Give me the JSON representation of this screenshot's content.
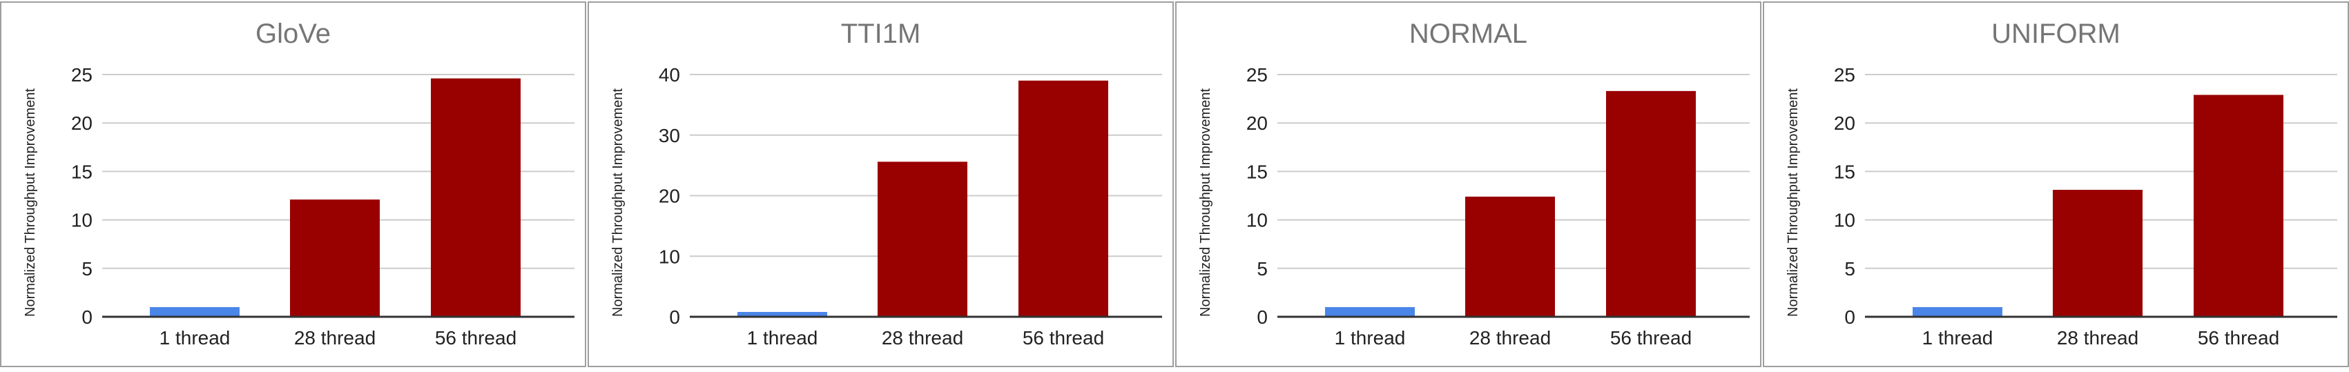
{
  "chart_data": [
    {
      "type": "bar",
      "title": "GloVe",
      "ylabel": "Normalized Throughput Improvement",
      "xlabel": "",
      "categories": [
        "1 thread",
        "28 thread",
        "56 thread"
      ],
      "values": [
        1.0,
        12.1,
        24.6
      ],
      "bar_colors": [
        "#4a86e8",
        "#990000",
        "#990000"
      ],
      "ylim": [
        0,
        25
      ],
      "yticks": [
        0,
        5,
        10,
        15,
        20,
        25
      ],
      "grid": true
    },
    {
      "type": "bar",
      "title": "TTI1M",
      "ylabel": "Normalized Throughput Improvement",
      "xlabel": "",
      "categories": [
        "1 thread",
        "28 thread",
        "56 thread"
      ],
      "values": [
        0.8,
        25.6,
        39.0
      ],
      "bar_colors": [
        "#4a86e8",
        "#990000",
        "#990000"
      ],
      "ylim": [
        0,
        40
      ],
      "yticks": [
        0,
        10,
        20,
        30,
        40
      ],
      "grid": true
    },
    {
      "type": "bar",
      "title": "NORMAL",
      "ylabel": "Normalized Throughput Improvement",
      "xlabel": "",
      "categories": [
        "1 thread",
        "28 thread",
        "56 thread"
      ],
      "values": [
        1.0,
        12.4,
        23.3
      ],
      "bar_colors": [
        "#4a86e8",
        "#990000",
        "#990000"
      ],
      "ylim": [
        0,
        25
      ],
      "yticks": [
        0,
        5,
        10,
        15,
        20,
        25
      ],
      "grid": true
    },
    {
      "type": "bar",
      "title": "UNIFORM",
      "ylabel": "Normalized Throughput Improvement",
      "xlabel": "",
      "categories": [
        "1 thread",
        "28 thread",
        "56 thread"
      ],
      "values": [
        1.0,
        13.1,
        22.9
      ],
      "bar_colors": [
        "#4a86e8",
        "#990000",
        "#990000"
      ],
      "ylim": [
        0,
        25
      ],
      "yticks": [
        0,
        5,
        10,
        15,
        20,
        25
      ],
      "grid": true
    }
  ],
  "colors": {
    "single_thread_bar": "#4a86e8",
    "multi_thread_bar": "#990000",
    "gridline": "#cccccc",
    "axis": "#333333",
    "title": "#757575",
    "panel_border": "#9e9e9e"
  }
}
